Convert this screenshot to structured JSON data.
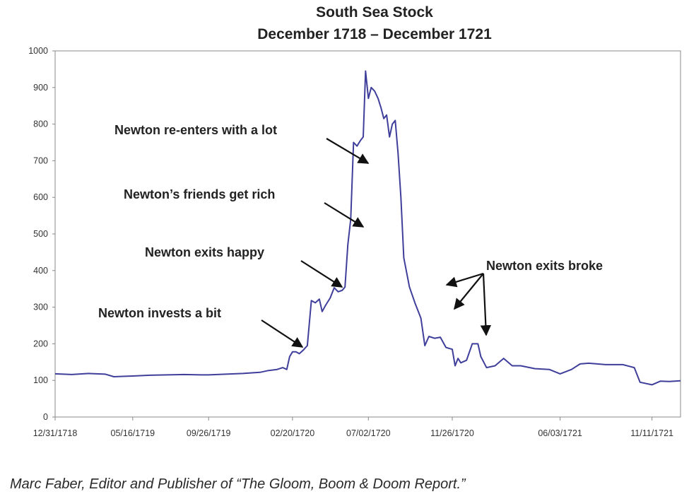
{
  "chart_data": {
    "type": "line",
    "title": "South Sea Stock",
    "subtitle": "December 1718 – December 1721",
    "xlabel": "",
    "ylabel": "",
    "ylim": [
      0,
      1000
    ],
    "yticks": [
      0,
      100,
      200,
      300,
      400,
      500,
      600,
      700,
      800,
      900,
      1000
    ],
    "xticks": [
      "12/31/1718",
      "05/16/1719",
      "09/26/1719",
      "02/20/1720",
      "07/02/1720",
      "11/26/1720",
      "06/03/1721",
      "11/11/1721"
    ],
    "grid": false,
    "line_color": "#3f3f9b",
    "series": [
      {
        "points": [
          [
            "12/31/1718",
            118
          ],
          [
            "01/29/1719",
            116
          ],
          [
            "02/28/1719",
            119
          ],
          [
            "03/29/1719",
            117
          ],
          [
            "04/13/1719",
            110
          ],
          [
            "04/28/1719",
            111
          ],
          [
            "05/16/1719",
            112
          ],
          [
            "06/15/1719",
            114
          ],
          [
            "07/15/1719",
            115
          ],
          [
            "08/14/1719",
            116
          ],
          [
            "09/13/1719",
            115
          ],
          [
            "09/26/1719",
            115
          ],
          [
            "10/26/1719",
            117
          ],
          [
            "11/25/1719",
            119
          ],
          [
            "12/25/1719",
            122
          ],
          [
            "01/09/1720",
            127
          ],
          [
            "01/24/1720",
            130
          ],
          [
            "02/03/1720",
            135
          ],
          [
            "02/10/1720",
            130
          ],
          [
            "02/15/1720",
            165
          ],
          [
            "02/20/1720",
            178
          ],
          [
            "02/26/1720",
            178
          ],
          [
            "03/03/1720",
            173
          ],
          [
            "03/10/1720",
            183
          ],
          [
            "03/17/1720",
            195
          ],
          [
            "03/24/1720",
            318
          ],
          [
            "03/31/1720",
            312
          ],
          [
            "04/07/1720",
            322
          ],
          [
            "04/12/1720",
            288
          ],
          [
            "04/18/1720",
            305
          ],
          [
            "04/26/1720",
            325
          ],
          [
            "05/03/1720",
            353
          ],
          [
            "05/10/1720",
            342
          ],
          [
            "05/17/1720",
            346
          ],
          [
            "05/22/1720",
            355
          ],
          [
            "05/27/1720",
            470
          ],
          [
            "06/01/1720",
            540
          ],
          [
            "06/06/1720",
            750
          ],
          [
            "06/12/1720",
            740
          ],
          [
            "06/18/1720",
            755
          ],
          [
            "06/23/1720",
            765
          ],
          [
            "06/27/1720",
            945
          ],
          [
            "07/02/1720",
            870
          ],
          [
            "07/07/1720",
            900
          ],
          [
            "07/13/1720",
            890
          ],
          [
            "07/19/1720",
            870
          ],
          [
            "07/24/1720",
            845
          ],
          [
            "07/29/1720",
            815
          ],
          [
            "08/03/1720",
            825
          ],
          [
            "08/08/1720",
            765
          ],
          [
            "08/13/1720",
            800
          ],
          [
            "08/18/1720",
            810
          ],
          [
            "08/23/1720",
            720
          ],
          [
            "08/28/1720",
            600
          ],
          [
            "09/02/1720",
            435
          ],
          [
            "09/12/1720",
            355
          ],
          [
            "09/22/1720",
            310
          ],
          [
            "10/02/1720",
            270
          ],
          [
            "10/09/1720",
            195
          ],
          [
            "10/16/1720",
            220
          ],
          [
            "10/26/1720",
            215
          ],
          [
            "11/05/1720",
            218
          ],
          [
            "11/15/1720",
            190
          ],
          [
            "11/26/1720",
            185
          ],
          [
            "12/01/1720",
            140
          ],
          [
            "12/06/1720",
            160
          ],
          [
            "12/11/1720",
            148
          ],
          [
            "12/21/1720",
            155
          ],
          [
            "12/31/1720",
            200
          ],
          [
            "01/10/1721",
            200
          ],
          [
            "01/15/1721",
            165
          ],
          [
            "01/25/1721",
            135
          ],
          [
            "02/09/1721",
            140
          ],
          [
            "02/24/1721",
            160
          ],
          [
            "03/11/1721",
            140
          ],
          [
            "03/26/1721",
            140
          ],
          [
            "04/20/1721",
            132
          ],
          [
            "05/15/1721",
            130
          ],
          [
            "06/03/1721",
            118
          ],
          [
            "06/23/1721",
            130
          ],
          [
            "07/08/1721",
            145
          ],
          [
            "07/23/1721",
            147
          ],
          [
            "08/22/1721",
            143
          ],
          [
            "09/21/1721",
            143
          ],
          [
            "10/11/1721",
            135
          ],
          [
            "10/21/1721",
            95
          ],
          [
            "11/11/1721",
            88
          ],
          [
            "11/26/1721",
            98
          ],
          [
            "12/11/1721",
            97
          ],
          [
            "12/31/1721",
            99
          ]
        ]
      }
    ],
    "annotations": [
      {
        "text": "Newton re-enters with a lot",
        "at": "06/06/1720",
        "value": 715
      },
      {
        "text": "Newton’s friends get rich",
        "at": "06/01/1720",
        "value": 510
      },
      {
        "text": "Newton exits happy",
        "at": "05/03/1720",
        "value": 355
      },
      {
        "text": "Newton invests a bit",
        "at": "02/15/1720",
        "value": 185
      },
      {
        "text": "Newton exits broke",
        "targets": [
          [
            "09/12/1720",
            360
          ],
          [
            "09/22/1720",
            290
          ],
          [
            "11/26/1720",
            215
          ]
        ]
      }
    ]
  },
  "caption": "Marc Faber, Editor and Publisher of “The Gloom, Boom & Doom Report.”"
}
